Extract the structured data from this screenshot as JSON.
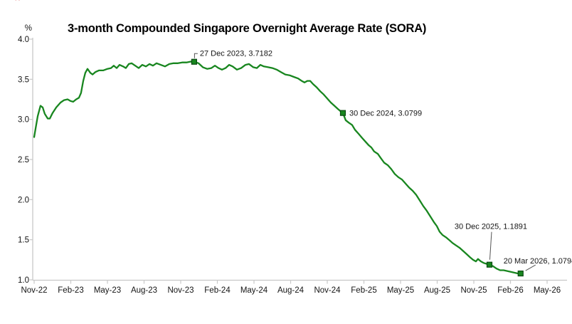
{
  "decor": {
    "corner_mark": "✕"
  },
  "chart_data": {
    "type": "line",
    "title": "3-month Compounded Singapore Overnight Average Rate (SORA)",
    "ylabel": "%",
    "ylim": [
      1.0,
      4.0
    ],
    "y_ticks": [
      4.0,
      3.5,
      3.0,
      2.5,
      2.0,
      1.5,
      1.0
    ],
    "x_tick_labels": [
      "Nov-22",
      "Feb-23",
      "May-23",
      "Aug-23",
      "Nov-23",
      "Feb-24",
      "May-24",
      "Aug-24",
      "Nov-24",
      "Feb-25",
      "May-25",
      "Aug-25",
      "Nov-25",
      "Feb-26",
      "May-26"
    ],
    "x_unit": "months since Nov-2022",
    "grid": false,
    "legend": false,
    "colors": {
      "line": "#18861f",
      "marker_fill": "#18861f",
      "marker_stroke": "#0b4a12",
      "axis": "#c8c8c8",
      "leader": "#555555",
      "text": "#141414"
    },
    "series": [
      {
        "name": "3-month Compounded SORA",
        "points": [
          [
            0,
            2.78
          ],
          [
            0.12,
            2.89
          ],
          [
            0.29,
            3.04
          ],
          [
            0.52,
            3.17
          ],
          [
            0.7,
            3.15
          ],
          [
            0.87,
            3.07
          ],
          [
            1.11,
            3.01
          ],
          [
            1.28,
            3.01
          ],
          [
            1.51,
            3.08
          ],
          [
            1.81,
            3.15
          ],
          [
            2.16,
            3.21
          ],
          [
            2.45,
            3.24
          ],
          [
            2.74,
            3.25
          ],
          [
            2.97,
            3.23
          ],
          [
            3.2,
            3.22
          ],
          [
            3.44,
            3.25
          ],
          [
            3.67,
            3.27
          ],
          [
            3.84,
            3.33
          ],
          [
            4.02,
            3.48
          ],
          [
            4.19,
            3.58
          ],
          [
            4.37,
            3.63
          ],
          [
            4.6,
            3.58
          ],
          [
            4.78,
            3.56
          ],
          [
            5.01,
            3.59
          ],
          [
            5.3,
            3.61
          ],
          [
            5.65,
            3.61
          ],
          [
            6,
            3.63
          ],
          [
            6.29,
            3.64
          ],
          [
            6.52,
            3.67
          ],
          [
            6.76,
            3.64
          ],
          [
            6.99,
            3.68
          ],
          [
            7.28,
            3.66
          ],
          [
            7.51,
            3.64
          ],
          [
            7.75,
            3.69
          ],
          [
            7.98,
            3.7
          ],
          [
            8.27,
            3.67
          ],
          [
            8.56,
            3.64
          ],
          [
            8.85,
            3.68
          ],
          [
            9.15,
            3.66
          ],
          [
            9.44,
            3.69
          ],
          [
            9.73,
            3.67
          ],
          [
            10.02,
            3.7
          ],
          [
            10.37,
            3.68
          ],
          [
            10.72,
            3.66
          ],
          [
            11.07,
            3.69
          ],
          [
            11.42,
            3.7
          ],
          [
            11.77,
            3.7
          ],
          [
            12.12,
            3.71
          ],
          [
            12.47,
            3.71
          ],
          [
            12.82,
            3.72
          ],
          [
            13.1,
            3.7182
          ],
          [
            13.46,
            3.7
          ],
          [
            13.81,
            3.65
          ],
          [
            14.16,
            3.63
          ],
          [
            14.51,
            3.64
          ],
          [
            14.8,
            3.67
          ],
          [
            15.09,
            3.64
          ],
          [
            15.38,
            3.62
          ],
          [
            15.67,
            3.64
          ],
          [
            15.96,
            3.68
          ],
          [
            16.25,
            3.66
          ],
          [
            16.6,
            3.62
          ],
          [
            16.95,
            3.64
          ],
          [
            17.3,
            3.68
          ],
          [
            17.59,
            3.69
          ],
          [
            17.94,
            3.65
          ],
          [
            18.23,
            3.64
          ],
          [
            18.52,
            3.68
          ],
          [
            18.81,
            3.66
          ],
          [
            19.16,
            3.65
          ],
          [
            19.51,
            3.64
          ],
          [
            19.86,
            3.62
          ],
          [
            20.21,
            3.59
          ],
          [
            20.56,
            3.56
          ],
          [
            20.91,
            3.55
          ],
          [
            21.26,
            3.53
          ],
          [
            21.61,
            3.51
          ],
          [
            21.9,
            3.48
          ],
          [
            22.14,
            3.46
          ],
          [
            22.37,
            3.48
          ],
          [
            22.6,
            3.48
          ],
          [
            22.84,
            3.44
          ],
          [
            23.13,
            3.4
          ],
          [
            23.42,
            3.35
          ],
          [
            23.71,
            3.31
          ],
          [
            24,
            3.26
          ],
          [
            24.29,
            3.21
          ],
          [
            24.58,
            3.17
          ],
          [
            24.87,
            3.13
          ],
          [
            25.1,
            3.1
          ],
          [
            25.28,
            3.0799
          ],
          [
            25.51,
            2.99
          ],
          [
            25.75,
            2.96
          ],
          [
            26.04,
            2.93
          ],
          [
            26.27,
            2.87
          ],
          [
            26.56,
            2.82
          ],
          [
            26.85,
            2.77
          ],
          [
            27.14,
            2.72
          ],
          [
            27.38,
            2.68
          ],
          [
            27.61,
            2.65
          ],
          [
            27.84,
            2.6
          ],
          [
            28.14,
            2.57
          ],
          [
            28.37,
            2.52
          ],
          [
            28.66,
            2.46
          ],
          [
            28.95,
            2.43
          ],
          [
            29.24,
            2.38
          ],
          [
            29.53,
            2.32
          ],
          [
            29.82,
            2.28
          ],
          [
            30.12,
            2.25
          ],
          [
            30.41,
            2.2
          ],
          [
            30.7,
            2.15
          ],
          [
            30.99,
            2.11
          ],
          [
            31.28,
            2.06
          ],
          [
            31.57,
            1.99
          ],
          [
            31.86,
            1.92
          ],
          [
            32.15,
            1.86
          ],
          [
            32.44,
            1.79
          ],
          [
            32.73,
            1.72
          ],
          [
            32.97,
            1.67
          ],
          [
            33.2,
            1.6
          ],
          [
            33.43,
            1.56
          ],
          [
            33.72,
            1.53
          ],
          [
            33.96,
            1.5
          ],
          [
            34.25,
            1.46
          ],
          [
            34.54,
            1.43
          ],
          [
            34.83,
            1.4
          ],
          [
            35.12,
            1.36
          ],
          [
            35.41,
            1.32
          ],
          [
            35.7,
            1.28
          ],
          [
            35.93,
            1.25
          ],
          [
            36.17,
            1.23
          ],
          [
            36.34,
            1.26
          ],
          [
            36.58,
            1.23
          ],
          [
            36.81,
            1.21
          ],
          [
            37.04,
            1.2
          ],
          [
            37.28,
            1.1891
          ],
          [
            37.57,
            1.17
          ],
          [
            37.86,
            1.14
          ],
          [
            38.15,
            1.12
          ],
          [
            38.44,
            1.12
          ],
          [
            38.73,
            1.11
          ],
          [
            39.02,
            1.1
          ],
          [
            39.31,
            1.09
          ],
          [
            39.6,
            1.08
          ],
          [
            39.83,
            1.0794
          ]
        ]
      }
    ],
    "annotations": [
      {
        "date": "27 Dec 2023",
        "value": 3.7182,
        "x": 13.1,
        "label": "27 Dec 2023, 3.7182",
        "placement": "elbow-right"
      },
      {
        "date": "30 Dec 2024",
        "value": 3.0799,
        "x": 25.28,
        "label": "30 Dec 2024, 3.0799",
        "placement": "right"
      },
      {
        "date": "30 Dec 2025",
        "value": 1.1891,
        "x": 37.28,
        "label": "30 Dec 2025, 1.1891",
        "placement": "above"
      },
      {
        "date": "20 Mar 2026",
        "value": 1.0794,
        "x": 39.83,
        "label": "20 Mar 2026, 1.0794",
        "placement": "above-right"
      }
    ]
  }
}
